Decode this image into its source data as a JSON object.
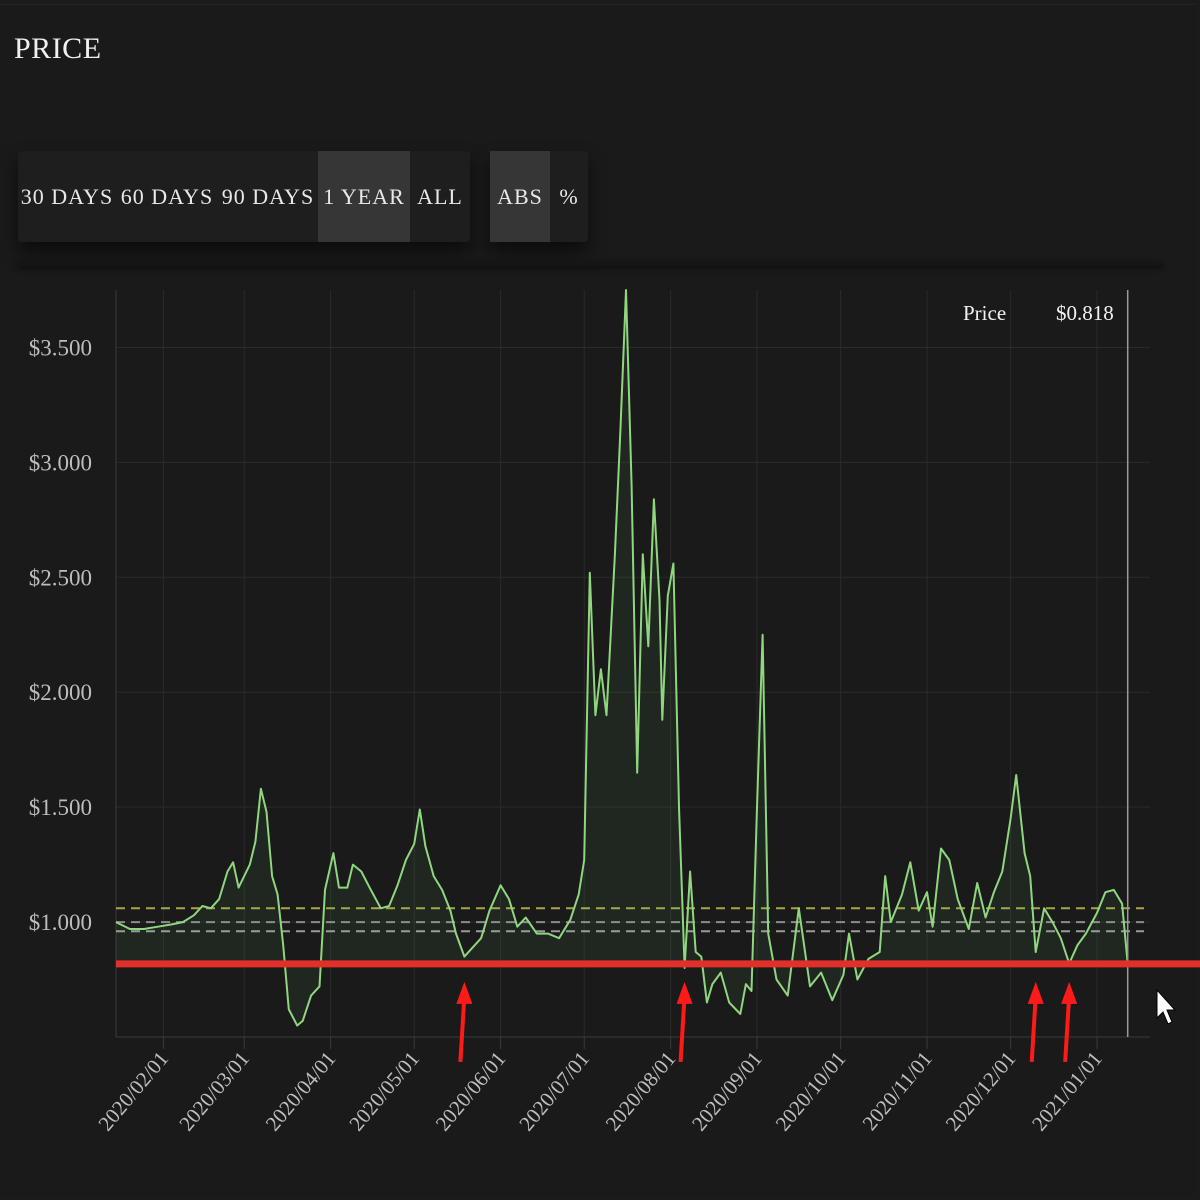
{
  "title": "PRICE",
  "range_buttons": [
    {
      "label": "30 DAYS",
      "active": false
    },
    {
      "label": "60 DAYS",
      "active": false
    },
    {
      "label": "90 DAYS",
      "active": false
    },
    {
      "label": "1 YEAR",
      "active": true
    },
    {
      "label": "ALL",
      "active": false
    }
  ],
  "mode_buttons": [
    {
      "label": "ABS",
      "active": true
    },
    {
      "label": "%",
      "active": false
    }
  ],
  "tooltip": {
    "label": "Price",
    "value": "$0.818"
  },
  "colors": {
    "background": "#1a1a1a",
    "price_line": "#8fd67f",
    "grid": "#2a2a2a",
    "ref_line_1": "#a6a646",
    "ref_line_2": "#8c8c8c",
    "ref_line_3": "#9a9a9a",
    "support_line": "#e1302a",
    "arrow": "#ff1a1a"
  },
  "chart_data": {
    "type": "line",
    "title": "",
    "xlabel": "",
    "ylabel": "",
    "ylim": [
      0.5,
      3.75
    ],
    "xlim": [
      "2020-01-15",
      "2021-01-20"
    ],
    "y_ticks": [
      "$1.000",
      "$1.500",
      "$2.000",
      "$2.500",
      "$3.000",
      "$3.500"
    ],
    "x_ticks": [
      "2020/02/01",
      "2020/03/01",
      "2020/04/01",
      "2020/05/01",
      "2020/06/01",
      "2020/07/01",
      "2020/08/01",
      "2020/09/01",
      "2020/10/01",
      "2020/11/01",
      "2020/12/01",
      "2021/01/01"
    ],
    "grid": true,
    "series": [
      {
        "name": "Price",
        "points": [
          [
            "2020-01-15",
            1.0
          ],
          [
            "2020-01-20",
            0.97
          ],
          [
            "2020-01-25",
            0.97
          ],
          [
            "2020-01-30",
            0.98
          ],
          [
            "2020-02-04",
            0.99
          ],
          [
            "2020-02-08",
            1.0
          ],
          [
            "2020-02-12",
            1.03
          ],
          [
            "2020-02-15",
            1.07
          ],
          [
            "2020-02-18",
            1.06
          ],
          [
            "2020-02-21",
            1.1
          ],
          [
            "2020-02-24",
            1.22
          ],
          [
            "2020-02-26",
            1.26
          ],
          [
            "2020-02-28",
            1.15
          ],
          [
            "2020-03-01",
            1.2
          ],
          [
            "2020-03-03",
            1.25
          ],
          [
            "2020-03-05",
            1.35
          ],
          [
            "2020-03-07",
            1.58
          ],
          [
            "2020-03-09",
            1.48
          ],
          [
            "2020-03-11",
            1.2
          ],
          [
            "2020-03-13",
            1.12
          ],
          [
            "2020-03-15",
            0.9
          ],
          [
            "2020-03-17",
            0.62
          ],
          [
            "2020-03-20",
            0.55
          ],
          [
            "2020-03-22",
            0.57
          ],
          [
            "2020-03-25",
            0.68
          ],
          [
            "2020-03-28",
            0.72
          ],
          [
            "2020-03-30",
            1.14
          ],
          [
            "2020-04-02",
            1.3
          ],
          [
            "2020-04-04",
            1.15
          ],
          [
            "2020-04-07",
            1.15
          ],
          [
            "2020-04-09",
            1.25
          ],
          [
            "2020-04-12",
            1.22
          ],
          [
            "2020-04-15",
            1.15
          ],
          [
            "2020-04-19",
            1.06
          ],
          [
            "2020-04-22",
            1.07
          ],
          [
            "2020-04-25",
            1.16
          ],
          [
            "2020-04-28",
            1.27
          ],
          [
            "2020-05-01",
            1.34
          ],
          [
            "2020-05-03",
            1.49
          ],
          [
            "2020-05-05",
            1.33
          ],
          [
            "2020-05-08",
            1.2
          ],
          [
            "2020-05-11",
            1.14
          ],
          [
            "2020-05-14",
            1.05
          ],
          [
            "2020-05-16",
            0.95
          ],
          [
            "2020-05-19",
            0.85
          ],
          [
            "2020-05-22",
            0.89
          ],
          [
            "2020-05-25",
            0.93
          ],
          [
            "2020-05-28",
            1.05
          ],
          [
            "2020-06-01",
            1.16
          ],
          [
            "2020-06-04",
            1.1
          ],
          [
            "2020-06-07",
            0.98
          ],
          [
            "2020-06-10",
            1.02
          ],
          [
            "2020-06-14",
            0.95
          ],
          [
            "2020-06-18",
            0.95
          ],
          [
            "2020-06-22",
            0.93
          ],
          [
            "2020-06-26",
            1.01
          ],
          [
            "2020-06-29",
            1.12
          ],
          [
            "2020-07-01",
            1.27
          ],
          [
            "2020-07-03",
            2.52
          ],
          [
            "2020-07-05",
            1.9
          ],
          [
            "2020-07-07",
            2.1
          ],
          [
            "2020-07-09",
            1.9
          ],
          [
            "2020-07-12",
            2.6
          ],
          [
            "2020-07-14",
            3.15
          ],
          [
            "2020-07-16",
            3.75
          ],
          [
            "2020-07-18",
            2.9
          ],
          [
            "2020-07-20",
            1.65
          ],
          [
            "2020-07-22",
            2.6
          ],
          [
            "2020-07-24",
            2.2
          ],
          [
            "2020-07-26",
            2.84
          ],
          [
            "2020-07-28",
            2.4
          ],
          [
            "2020-07-29",
            1.88
          ],
          [
            "2020-07-31",
            2.42
          ],
          [
            "2020-08-02",
            2.56
          ],
          [
            "2020-08-04",
            1.5
          ],
          [
            "2020-08-06",
            0.8
          ],
          [
            "2020-08-08",
            1.22
          ],
          [
            "2020-08-10",
            0.87
          ],
          [
            "2020-08-12",
            0.85
          ],
          [
            "2020-08-14",
            0.65
          ],
          [
            "2020-08-16",
            0.73
          ],
          [
            "2020-08-19",
            0.78
          ],
          [
            "2020-08-22",
            0.65
          ],
          [
            "2020-08-26",
            0.6
          ],
          [
            "2020-08-28",
            0.73
          ],
          [
            "2020-08-30",
            0.7
          ],
          [
            "2020-09-01",
            1.5
          ],
          [
            "2020-09-03",
            2.25
          ],
          [
            "2020-09-05",
            0.95
          ],
          [
            "2020-09-08",
            0.75
          ],
          [
            "2020-09-12",
            0.68
          ],
          [
            "2020-09-16",
            1.06
          ],
          [
            "2020-09-20",
            0.72
          ],
          [
            "2020-09-24",
            0.78
          ],
          [
            "2020-09-28",
            0.66
          ],
          [
            "2020-10-02",
            0.77
          ],
          [
            "2020-10-04",
            0.95
          ],
          [
            "2020-10-07",
            0.75
          ],
          [
            "2020-10-11",
            0.84
          ],
          [
            "2020-10-15",
            0.87
          ],
          [
            "2020-10-17",
            1.2
          ],
          [
            "2020-10-19",
            1.0
          ],
          [
            "2020-10-23",
            1.12
          ],
          [
            "2020-10-26",
            1.26
          ],
          [
            "2020-10-29",
            1.05
          ],
          [
            "2020-11-01",
            1.13
          ],
          [
            "2020-11-03",
            0.98
          ],
          [
            "2020-11-06",
            1.32
          ],
          [
            "2020-11-09",
            1.27
          ],
          [
            "2020-11-12",
            1.1
          ],
          [
            "2020-11-16",
            0.97
          ],
          [
            "2020-11-19",
            1.17
          ],
          [
            "2020-11-22",
            1.02
          ],
          [
            "2020-11-25",
            1.13
          ],
          [
            "2020-11-28",
            1.22
          ],
          [
            "2020-12-01",
            1.45
          ],
          [
            "2020-12-03",
            1.64
          ],
          [
            "2020-12-06",
            1.3
          ],
          [
            "2020-12-08",
            1.2
          ],
          [
            "2020-12-10",
            0.87
          ],
          [
            "2020-12-13",
            1.06
          ],
          [
            "2020-12-16",
            1.0
          ],
          [
            "2020-12-19",
            0.93
          ],
          [
            "2020-12-22",
            0.82
          ],
          [
            "2020-12-25",
            0.9
          ],
          [
            "2020-12-28",
            0.95
          ],
          [
            "2021-01-01",
            1.04
          ],
          [
            "2021-01-04",
            1.13
          ],
          [
            "2021-01-07",
            1.14
          ],
          [
            "2021-01-10",
            1.08
          ],
          [
            "2021-01-12",
            0.818
          ]
        ]
      }
    ],
    "reference_lines": [
      {
        "value": 1.06,
        "style": "dashed",
        "color_key": "ref_line_1"
      },
      {
        "value": 1.0,
        "style": "dashed",
        "color_key": "ref_line_2"
      },
      {
        "value": 0.96,
        "style": "dashed",
        "color_key": "ref_line_3"
      }
    ],
    "support_line": {
      "value": 0.818
    },
    "arrows": [
      {
        "date": "2020-05-19"
      },
      {
        "date": "2020-08-06"
      },
      {
        "date": "2020-12-10"
      },
      {
        "date": "2020-12-22"
      }
    ]
  }
}
